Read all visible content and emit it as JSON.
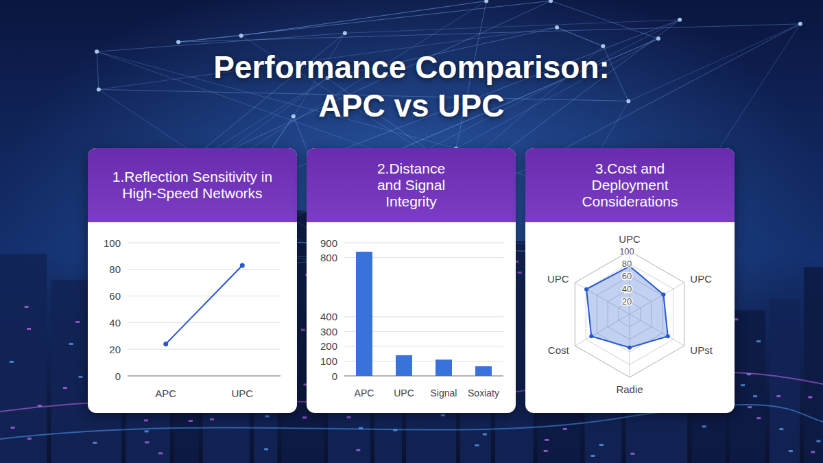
{
  "title_lines": [
    "Performance Comparison:",
    "APC vs UPC"
  ],
  "chart_data": [
    {
      "type": "line",
      "title": "1.Reflection Sensitivity in High-Speed Networks",
      "categories": [
        "APC",
        "UPC"
      ],
      "values": [
        24,
        83
      ],
      "color": "#2557cf",
      "marker": "circle",
      "ylim": [
        0,
        100
      ],
      "yticks": [
        0,
        20,
        40,
        60,
        80,
        100
      ],
      "grid": true
    },
    {
      "type": "bar",
      "title": "2.Distance and Signal Integrity",
      "categories": [
        "APC",
        "UPC",
        "Signal",
        "Soxiaty"
      ],
      "values": [
        840,
        140,
        110,
        65
      ],
      "color": "#3a72dc",
      "ylim": [
        0,
        900
      ],
      "yticks": [
        0,
        100,
        200,
        300,
        400,
        800,
        900
      ],
      "grid": true
    },
    {
      "type": "radar",
      "title": "3.Cost and Deployment Considerations",
      "categories": [
        "UPC",
        "UPC",
        "UPst",
        "Radie",
        "Cost",
        "UPC"
      ],
      "values": [
        76,
        62,
        70,
        53,
        70,
        79
      ],
      "color": "#2557cf",
      "marker": "circle",
      "ylim": [
        0,
        100
      ],
      "yticks": [
        20,
        40,
        60,
        80,
        100
      ],
      "grid": true
    }
  ]
}
